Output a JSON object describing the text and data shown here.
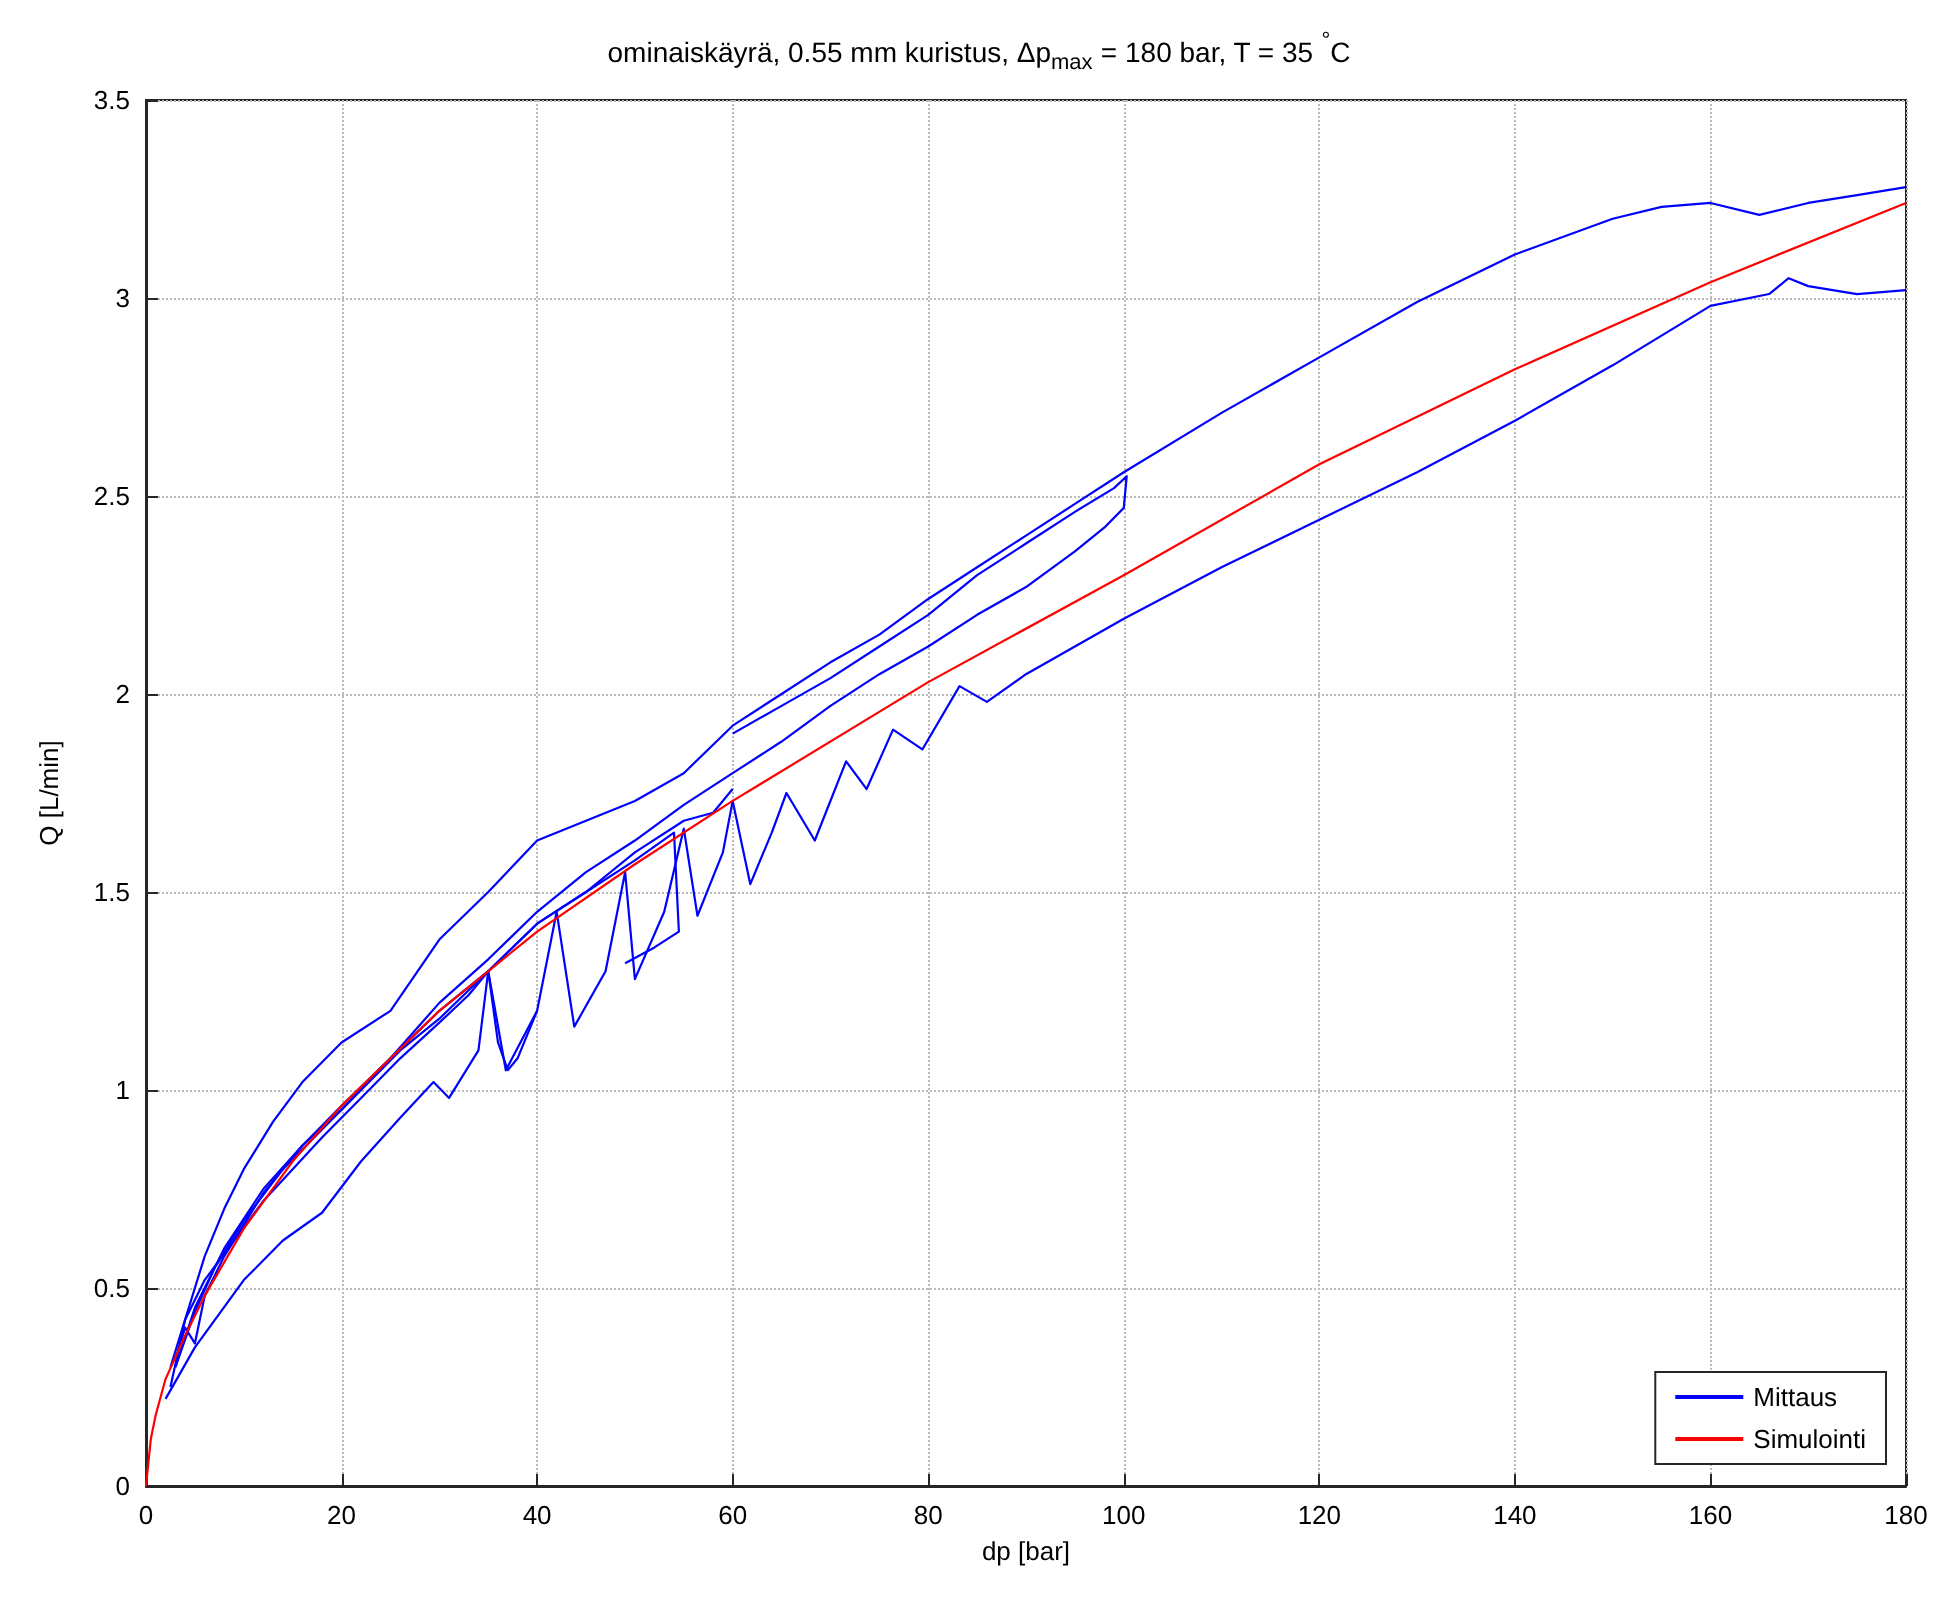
{
  "chart_data": {
    "type": "line",
    "title": "ominaiskäyrä, 0.55 mm kuristus, Δp$_{max}$ = 180 bar, T = 35 $^{°}$C",
    "xlabel": "dp [bar]",
    "ylabel": "Q [L/min]",
    "xlim": [
      0,
      180
    ],
    "xticks": [
      0,
      20,
      40,
      60,
      80,
      100,
      120,
      140,
      160,
      180
    ],
    "ylim": [
      0,
      3.5
    ],
    "yticks": [
      0,
      0.5,
      1,
      1.5,
      2,
      2.5,
      3,
      3.5
    ],
    "grid": true,
    "legend": "bottom right",
    "marker": "none",
    "series": [
      {
        "name": "Mittaus",
        "color": "#0000ff",
        "x": [
          2.5,
          4,
          6,
          8,
          10,
          13,
          16,
          20,
          25,
          30,
          35,
          40,
          45,
          50,
          55,
          60,
          65,
          70,
          75,
          80,
          85,
          90,
          95,
          100,
          110,
          120,
          130,
          140,
          150,
          155,
          160,
          165,
          170,
          175,
          180
        ],
        "values": [
          0.25,
          0.42,
          0.58,
          0.7,
          0.8,
          0.92,
          1.02,
          1.12,
          1.2,
          1.38,
          1.5,
          1.63,
          1.68,
          1.73,
          1.8,
          1.92,
          2.0,
          2.08,
          2.15,
          2.24,
          2.32,
          2.4,
          2.48,
          2.56,
          2.71,
          2.85,
          2.99,
          3.11,
          3.2,
          3.23,
          3.24,
          3.21,
          3.24,
          3.26,
          3.28
        ]
      },
      {
        "color": "#0000ff",
        "x": [
          3,
          5,
          8,
          12,
          16,
          20,
          25,
          30,
          35,
          40,
          45,
          50,
          55,
          60,
          65,
          70,
          75,
          80,
          85,
          90,
          95,
          98,
          100,
          100.3,
          99,
          95,
          90,
          85,
          80,
          75,
          70,
          65,
          60
        ],
        "values": [
          0.3,
          0.45,
          0.6,
          0.75,
          0.86,
          0.96,
          1.08,
          1.22,
          1.33,
          1.45,
          1.55,
          1.63,
          1.72,
          1.8,
          1.88,
          1.97,
          2.05,
          2.12,
          2.2,
          2.27,
          2.36,
          2.42,
          2.47,
          2.55,
          2.52,
          2.46,
          2.38,
          2.3,
          2.2,
          2.12,
          2.04,
          1.97,
          1.9
        ]
      },
      {
        "color": "#0000ff",
        "x": [
          2,
          5,
          10,
          14,
          18,
          22,
          26,
          29.4,
          31,
          34,
          35,
          36.8,
          40,
          42,
          43.8,
          47,
          49,
          50,
          53,
          55,
          56.4,
          59,
          60,
          61.8,
          64,
          65.5,
          68.4,
          71.6,
          73.7,
          76.4,
          79.4,
          83.2,
          86,
          90,
          95,
          100,
          110,
          120,
          130,
          140,
          150,
          160,
          166,
          168,
          170,
          175,
          180
        ],
        "values": [
          0.22,
          0.35,
          0.52,
          0.62,
          0.69,
          0.82,
          0.93,
          1.02,
          0.98,
          1.1,
          1.3,
          1.05,
          1.2,
          1.45,
          1.16,
          1.3,
          1.55,
          1.28,
          1.45,
          1.66,
          1.44,
          1.6,
          1.73,
          1.52,
          1.65,
          1.75,
          1.63,
          1.83,
          1.76,
          1.91,
          1.86,
          2.02,
          1.98,
          2.05,
          2.12,
          2.19,
          2.32,
          2.44,
          2.56,
          2.69,
          2.83,
          2.98,
          3.01,
          3.05,
          3.03,
          3.01,
          3.02
        ]
      },
      {
        "color": "#0000ff",
        "x": [
          3,
          4,
          5,
          6,
          8,
          12,
          16,
          20,
          25,
          30,
          35,
          40,
          45,
          50,
          54,
          54.5,
          52,
          49
        ],
        "values": [
          0.32,
          0.4,
          0.36,
          0.48,
          0.58,
          0.74,
          0.86,
          0.95,
          1.08,
          1.2,
          1.3,
          1.42,
          1.5,
          1.58,
          1.65,
          1.4,
          1.36,
          1.32
        ]
      },
      {
        "color": "#0000ff",
        "x": [
          2.5,
          4,
          6,
          9,
          12,
          15,
          18,
          22,
          26,
          30,
          33,
          35,
          36,
          37,
          38,
          40
        ],
        "values": [
          0.3,
          0.42,
          0.52,
          0.62,
          0.72,
          0.8,
          0.88,
          0.98,
          1.08,
          1.17,
          1.24,
          1.3,
          1.12,
          1.05,
          1.08,
          1.2
        ]
      },
      {
        "color": "#0000ff",
        "x": [
          3,
          5,
          7,
          10,
          14,
          18,
          22,
          26,
          30,
          35,
          40,
          45,
          50,
          55,
          58,
          60
        ],
        "values": [
          0.3,
          0.44,
          0.55,
          0.67,
          0.8,
          0.9,
          1.0,
          1.1,
          1.18,
          1.3,
          1.42,
          1.5,
          1.6,
          1.68,
          1.7,
          1.76
        ]
      },
      {
        "name": "Simulointi",
        "color": "#ff0000",
        "x": [
          0,
          0.5,
          1,
          2,
          4,
          6,
          10,
          15,
          20,
          30,
          40,
          50,
          60,
          80,
          100,
          120,
          140,
          160,
          180
        ],
        "values": [
          0,
          0.12,
          0.18,
          0.27,
          0.38,
          0.48,
          0.65,
          0.82,
          0.96,
          1.2,
          1.4,
          1.57,
          1.73,
          2.03,
          2.3,
          2.58,
          2.82,
          3.04,
          3.24
        ]
      }
    ]
  }
}
